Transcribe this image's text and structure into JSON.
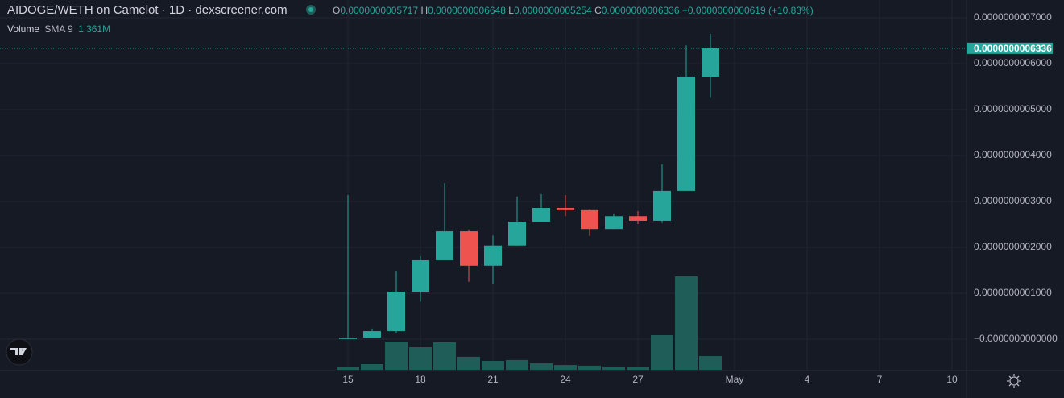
{
  "header": {
    "title": "AIDOGE/WETH on Camelot · 1D · dexscreener.com",
    "ohlc": [
      {
        "label": "O",
        "value": "0.0000000005717"
      },
      {
        "label": "H",
        "value": "0.0000000006648"
      },
      {
        "label": "L",
        "value": "0.0000000005254"
      },
      {
        "label": "C",
        "value": "0.0000000006336"
      }
    ],
    "change": "+0.0000000000619 (+10.83%)",
    "volume_label": "Volume",
    "sma_label": "SMA 9",
    "sma_value": "1.361M"
  },
  "chart_data": {
    "type": "candlestick",
    "categories": [
      "15",
      null,
      null,
      "18",
      null,
      null,
      "21",
      null,
      null,
      "24",
      null,
      null,
      "27",
      null,
      null,
      null,
      "May",
      null,
      null,
      "4",
      null,
      null,
      "7",
      null,
      null,
      "10"
    ],
    "open": [
      1e-12,
      3.5e-12,
      1.75e-11,
      1.035e-10,
      1.72e-10,
      2.35e-10,
      1.6e-10,
      2.04e-10,
      2.56e-10,
      2.86e-10,
      2.81e-10,
      2.4e-10,
      2.68e-10,
      2.58e-10,
      3.23e-10,
      5.717e-10,
      null,
      null,
      null,
      null,
      null,
      null,
      null,
      null,
      null,
      null
    ],
    "high": [
      3.14e-10,
      2.3e-11,
      1.49e-10,
      1.81e-10,
      3.4e-10,
      2.39e-10,
      2.26e-10,
      3.11e-10,
      3.16e-10,
      3.14e-10,
      2.82e-10,
      2.74e-10,
      2.79e-10,
      3.81e-10,
      6.4e-10,
      6.648e-10,
      null,
      null,
      null,
      null,
      null,
      null,
      null,
      null,
      null,
      null
    ],
    "low": [
      0,
      3.5e-12,
      1.4e-11,
      8.2e-11,
      1.72e-10,
      1.25e-10,
      1.21e-10,
      2.04e-10,
      2.56e-10,
      2.68e-10,
      2.25e-10,
      2.4e-10,
      2.51e-10,
      2.53e-10,
      3.23e-10,
      5.254e-10,
      null,
      null,
      null,
      null,
      null,
      null,
      null,
      null,
      null,
      null
    ],
    "close": [
      3e-12,
      1.75e-11,
      1.035e-10,
      1.72e-10,
      2.35e-10,
      1.6e-10,
      2.04e-10,
      2.56e-10,
      2.86e-10,
      2.81e-10,
      2.4e-10,
      2.68e-10,
      2.58e-10,
      3.23e-10,
      5.72e-10,
      6.336e-10,
      null,
      null,
      null,
      null,
      null,
      null,
      null,
      null,
      null,
      null
    ],
    "volume": [
      0.17,
      0.4,
      2.0,
      1.6,
      1.95,
      0.92,
      0.63,
      0.69,
      0.46,
      0.34,
      0.29,
      0.23,
      0.17,
      2.46,
      6.64,
      0.97,
      null,
      null,
      null,
      null,
      null,
      null,
      null,
      null,
      null,
      null
    ],
    "up_color": "#26a69a",
    "down_color": "#ef5350",
    "volume_color": "#1f5e58",
    "ylim": [
      -6.84e-11,
      7.386e-10
    ],
    "yticks": [
      {
        "value": 7e-10,
        "label": "0.0000000007000"
      },
      {
        "value": 6e-10,
        "label": "0.0000000006000"
      },
      {
        "value": 5e-10,
        "label": "0.0000000005000"
      },
      {
        "value": 4e-10,
        "label": "0.0000000004000"
      },
      {
        "value": 3e-10,
        "label": "0.0000000003000"
      },
      {
        "value": 2e-10,
        "label": "0.0000000002000"
      },
      {
        "value": 1e-10,
        "label": "0.0000000001000"
      },
      {
        "value": 0,
        "label": "−0.0000000000000"
      }
    ],
    "volume_lim": [
      0,
      7
    ],
    "last_price": {
      "value": 6.336e-10,
      "label": "0.0000000006336"
    },
    "grid": true
  }
}
